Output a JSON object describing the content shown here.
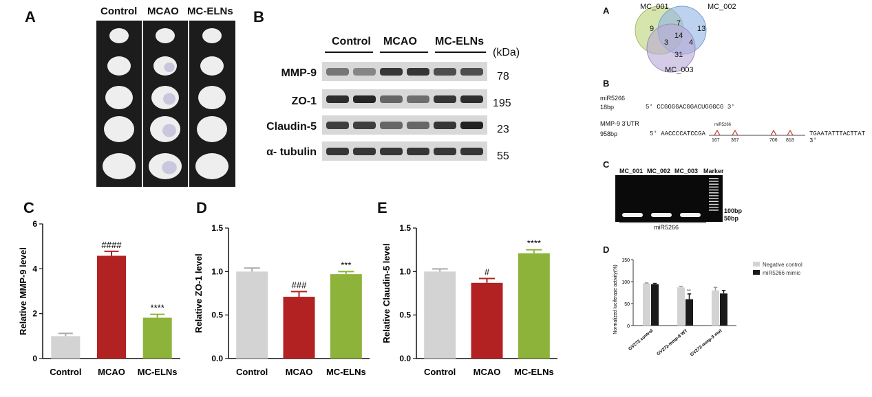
{
  "panels": {
    "A": "A",
    "B": "B",
    "C": "C",
    "D": "D",
    "E": "E",
    "rA": "A",
    "rB": "B",
    "rC": "C",
    "rD": "D"
  },
  "brain": {
    "groups": [
      "Control",
      "MCAO",
      "MC-ELNs"
    ]
  },
  "western": {
    "groups": [
      "Control",
      "MCAO",
      "MC-ELNs"
    ],
    "kda_header": "(kDa)",
    "rows": [
      {
        "label": "MMP-9",
        "kda": "78"
      },
      {
        "label": "ZO-1",
        "kda": "195"
      },
      {
        "label": "Claudin-5",
        "kda": "23"
      },
      {
        "label": "α- tubulin",
        "kda": "55"
      }
    ]
  },
  "chart_data": [
    {
      "type": "bar",
      "categories": [
        "Control",
        "MCAO",
        "MC-ELNs"
      ],
      "values": [
        1.0,
        4.58,
        1.82
      ],
      "errors": [
        0.12,
        0.2,
        0.15
      ],
      "ylabel": "Relative MMP-9 level",
      "ylim": [
        0,
        6
      ],
      "yticks": [
        "0",
        "2",
        "4",
        "6"
      ],
      "annotations": [
        "",
        "####",
        "****"
      ],
      "colors": [
        "#d3d3d3",
        "#b22222",
        "#8db33a"
      ]
    },
    {
      "type": "bar",
      "categories": [
        "Control",
        "MCAO",
        "MC-ELNs"
      ],
      "values": [
        1.0,
        0.71,
        0.97
      ],
      "errors": [
        0.04,
        0.06,
        0.03
      ],
      "ylabel": "Relative ZO-1 level",
      "ylim": [
        0,
        1.5
      ],
      "yticks": [
        "0.0",
        "0.5",
        "1.0",
        "1.5"
      ],
      "annotations": [
        "",
        "###",
        "***"
      ],
      "colors": [
        "#d3d3d3",
        "#b22222",
        "#8db33a"
      ]
    },
    {
      "type": "bar",
      "categories": [
        "Control",
        "MCAO",
        "MC-ELNs"
      ],
      "values": [
        1.0,
        0.87,
        1.21
      ],
      "errors": [
        0.03,
        0.05,
        0.04
      ],
      "ylabel": "Relative Claudin-5 level",
      "ylim": [
        0,
        1.5
      ],
      "yticks": [
        "0.0",
        "0.5",
        "1.0",
        "1.5"
      ],
      "annotations": [
        "",
        "#",
        "****"
      ],
      "colors": [
        "#d3d3d3",
        "#b22222",
        "#8db33a"
      ]
    },
    {
      "type": "bar",
      "categories": [
        "GV272 control",
        "GV272-mmp-9 WT",
        "GV272-mmp-9 mut"
      ],
      "series": [
        {
          "name": "Negative control",
          "values": [
            96,
            87,
            80
          ],
          "errors": [
            1,
            2,
            7
          ]
        },
        {
          "name": "miR5266 mimic",
          "values": [
            94,
            60,
            73
          ],
          "errors": [
            2,
            12,
            7
          ]
        }
      ],
      "ylabel": "Normalized luciferase activity(%)",
      "ylim": [
        0,
        150
      ],
      "yticks": [
        "0",
        "50",
        "100",
        "150"
      ],
      "annotations": [
        "",
        "**",
        ""
      ],
      "legend": "top-right",
      "colors": [
        "#d3d3d3",
        "#1a1a1a"
      ]
    }
  ],
  "venn": {
    "sets": [
      "MC_001",
      "MC_002",
      "MC_003"
    ],
    "counts": {
      "only1": "9",
      "only2": "13",
      "only3": "31",
      "ab": "7",
      "abc": "14",
      "ac": "3",
      "bc": "4"
    }
  },
  "seq": {
    "mirna_name": "miR5266",
    "mirna_len": "18bp",
    "mirna_seq": "5' CCGGGGACGGACUGGGCG 3'",
    "utr_name": "MMP-9 3'UTR",
    "utr_len": "958bp",
    "utr_left": "5'  AACCCCATCCGA",
    "site_label": "miR5266",
    "positions": [
      "167",
      "367",
      "706",
      "818"
    ],
    "utr_right": "TGAATATTTACTTAT 3'"
  },
  "gel": {
    "lanes": [
      "MC_001",
      "MC_002",
      "MC_003",
      "Marker"
    ],
    "ladder": [
      "100bp",
      "50bp"
    ],
    "bottom_label": "miR5266"
  }
}
